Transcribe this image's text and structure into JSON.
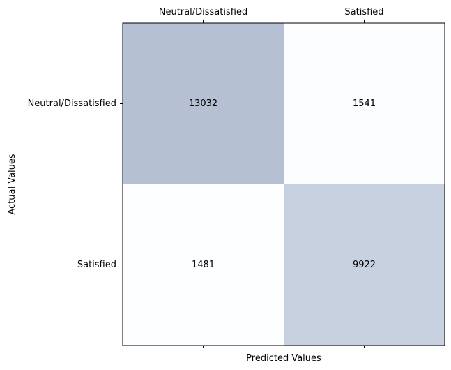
{
  "chart_data": {
    "type": "heatmap",
    "subtype": "confusion-matrix",
    "title": "",
    "xlabel": "Predicted Values",
    "ylabel": "Actual Values",
    "x_categories": [
      "Neutral/Dissatisfied",
      "Satisfied"
    ],
    "y_categories": [
      "Neutral/Dissatisfied",
      "Satisfied"
    ],
    "x_ticks_position": "top",
    "values": [
      [
        13032,
        1541
      ],
      [
        1481,
        9922
      ]
    ],
    "colormap": "Blues",
    "cell_alpha": 0.3,
    "grid": false,
    "colors": {
      "low": "#f7fbff",
      "high": "#08306b"
    }
  }
}
